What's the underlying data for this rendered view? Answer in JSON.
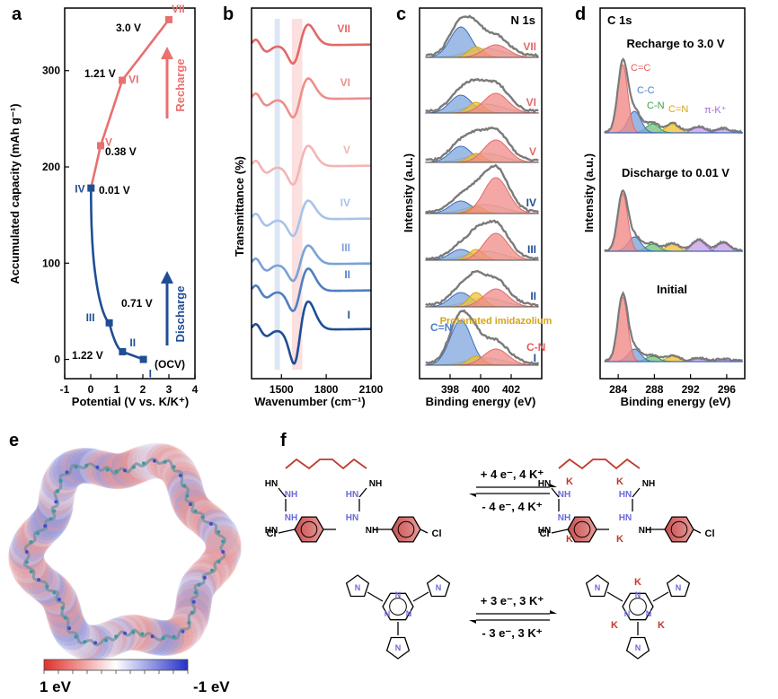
{
  "figure": {
    "panel_letters": [
      "a",
      "b",
      "c",
      "d",
      "e",
      "f"
    ]
  },
  "colors": {
    "charge": "#e8706f",
    "discharge": "#1f4e95",
    "blue_fill": "#7ea6dc",
    "red_fill": "#f08b88",
    "yellow_fill": "#f2c23b",
    "grey_fill": "#d8d8c8",
    "green_fill": "#7cc583",
    "purple_fill": "#c9a1e6",
    "gold_text": "#d4a514",
    "envelope": "#7a7a7a"
  },
  "chart_data": [
    {
      "id": "a",
      "type": "line",
      "xlabel": "Potential (V vs. K/K⁺)",
      "ylabel": "Accumulated capacity (mAh g⁻¹)",
      "xlim": [
        -1,
        4
      ],
      "ylim": [
        -20,
        365
      ],
      "xticks": [
        "-1",
        "0",
        "1",
        "2",
        "3",
        "4"
      ],
      "yticks": [
        "0",
        "100",
        "200",
        "300"
      ],
      "series": [
        {
          "name": "Discharge",
          "points": [
            {
              "label": "I",
              "x": 2.02,
              "y": 0,
              "annot": "(OCV)"
            },
            {
              "label": "II",
              "x": 1.22,
              "y": 8,
              "annot": "1.22 V"
            },
            {
              "label": "III",
              "x": 0.71,
              "y": 38,
              "annot": "0.71 V"
            },
            {
              "label": "IV",
              "x": 0.01,
              "y": 178,
              "annot": "0.01 V"
            }
          ]
        },
        {
          "name": "Recharge",
          "points": [
            {
              "label": "IV",
              "x": 0.01,
              "y": 178,
              "annot": ""
            },
            {
              "label": "V",
              "x": 0.38,
              "y": 222,
              "annot": "0.38 V"
            },
            {
              "label": "VI",
              "x": 1.21,
              "y": 290,
              "annot": "1.21 V"
            },
            {
              "label": "VII",
              "x": 3.0,
              "y": 353,
              "annot": "3.0 V"
            }
          ]
        }
      ],
      "arrows": [
        "Recharge",
        "Discharge"
      ]
    },
    {
      "id": "b",
      "type": "line",
      "xlabel": "Wavenumber (cm⁻¹)",
      "ylabel": "Transmittance (%)",
      "xlim": [
        1300,
        2100
      ],
      "xticks": [
        "1500",
        "1800",
        "2100"
      ],
      "highlight_bands": [
        [
          1455,
          1490
        ],
        [
          1570,
          1640
        ]
      ],
      "series": [
        "I",
        "II",
        "III",
        "IV",
        "V",
        "VI",
        "VII"
      ]
    },
    {
      "id": "c",
      "type": "area",
      "title": "N 1s",
      "xlabel": "Binding energy (eV)",
      "ylabel": "Intensity (a.u.)",
      "xlim": [
        396,
        404
      ],
      "xticks": [
        "398",
        "400",
        "402"
      ],
      "components": [
        "C=N",
        "Protonated imidazolium",
        "C-N"
      ],
      "peak_positions_eV": [
        398.7,
        399.7,
        401.0
      ],
      "series": [
        "I",
        "II",
        "III",
        "IV",
        "V",
        "VI",
        "VII"
      ]
    },
    {
      "id": "d",
      "type": "area",
      "title": "C 1s",
      "xlabel": "Binding energy (eV)",
      "ylabel": "Intensity (a.u.)",
      "xlim": [
        282,
        298
      ],
      "xticks": [
        "284",
        "288",
        "292",
        "296"
      ],
      "components": [
        "C=C",
        "C-C",
        "C-N",
        "C=N",
        "π-K⁺"
      ],
      "peak_positions_eV": [
        284.5,
        285.8,
        287.8,
        290.0,
        292.9,
        295.6
      ],
      "series": [
        "Initial",
        "Discharge to 0.01 V",
        "Recharge to 3.0 V"
      ]
    }
  ],
  "panel_e": {
    "scale_left": "1 eV",
    "scale_right": "-1 eV"
  },
  "panel_f": {
    "reaction1_forward": "+ 4 e⁻, 4 K⁺",
    "reaction1_reverse": "- 4 e⁻, 4 K⁺",
    "reaction2_forward": "+ 3 e⁻, 3 K⁺",
    "reaction2_reverse": "- 3 e⁻, 3 K⁺",
    "atom_cl": "Cl",
    "atom_k": "K",
    "atom_hn": "HN",
    "atom_nh": "NH",
    "atom_n": "N"
  }
}
